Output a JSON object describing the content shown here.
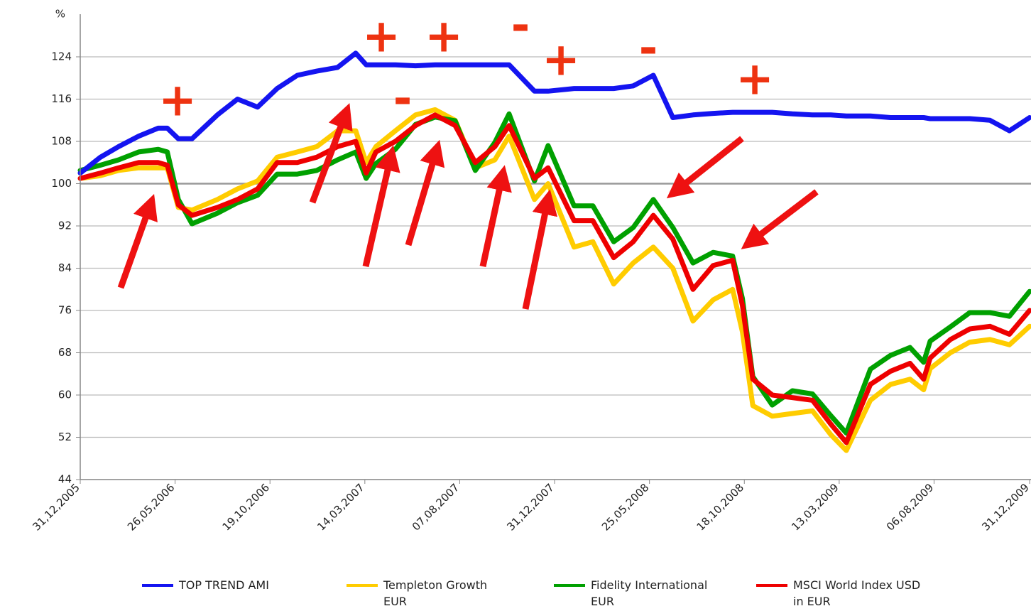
{
  "chart_data": {
    "type": "line",
    "y_label": "%",
    "x": [
      "31,12,2005",
      "31,01,2006",
      "28,02,2006",
      "31,03,2006",
      "30,04,2006",
      "14,05,2006",
      "31,05,2006",
      "21,06,2006",
      "30,07,2006",
      "30,08,2006",
      "30,09,2006",
      "30,10,2006",
      "30,11,2006",
      "30,12,2006",
      "31,01,2007",
      "28,02,2007",
      "16,03,2007",
      "31,03,2007",
      "30,04,2007",
      "31,05,2007",
      "30,06,2007",
      "31,07,2007",
      "31,08,2007",
      "30,09,2007",
      "22,10,2007",
      "30,11,2007",
      "21,12,2007",
      "30,01,2008",
      "28,02,2008",
      "31,03,2008",
      "30,04,2008",
      "31,05,2008",
      "30,06,2008",
      "31,07,2008",
      "31,08,2008",
      "30,09,2008",
      "15,10,2008",
      "31,10,2008",
      "30,11,2008",
      "31,12,2008",
      "31,01,2009",
      "28,02,2009",
      "24,03,2009",
      "30,04,2009",
      "31,05,2009",
      "30,06,2009",
      "21,07,2009",
      "31,07,2009",
      "31,08,2009",
      "30,09,2009",
      "31,10,2009",
      "30,11,2009",
      "31,12,2009"
    ],
    "series": [
      {
        "name": "TOP TREND AMI",
        "color": "#1414f0",
        "values": [
          102,
          105,
          107,
          109,
          110.5,
          110.5,
          108.5,
          108.5,
          113,
          116,
          114.5,
          118,
          120.5,
          121.3,
          122,
          124.7,
          122.5,
          122.5,
          122.5,
          122.3,
          122.5,
          122.5,
          122.5,
          122.5,
          122.5,
          117.5,
          117.5,
          118,
          118,
          118,
          118.5,
          120.5,
          112.5,
          113,
          113.3,
          113.5,
          113.5,
          113.5,
          113.5,
          113.2,
          113,
          113,
          112.8,
          112.8,
          112.5,
          112.5,
          112.5,
          112.3,
          112.3,
          112.3,
          112,
          110,
          112.5
        ]
      },
      {
        "name": "Templeton Growth EUR",
        "color": "#ffcc00",
        "values": [
          101,
          101.5,
          102.5,
          103,
          103,
          103,
          95.5,
          95,
          97,
          99,
          100.5,
          105,
          106,
          107,
          110,
          110,
          104,
          107,
          110,
          113,
          114,
          112,
          103,
          104.5,
          109,
          97,
          100,
          88,
          89,
          81,
          85,
          88,
          84,
          74,
          78,
          80,
          72,
          58,
          56,
          56.5,
          57,
          52.5,
          49.5,
          59,
          62,
          63,
          61,
          65,
          68,
          70,
          70.5,
          69.5,
          73
        ]
      },
      {
        "name": "Fidelity International EUR",
        "color": "#00a000",
        "values": [
          102.5,
          103.5,
          104.5,
          106,
          106.5,
          106,
          97,
          92.4,
          94.4,
          96.4,
          97.8,
          101.8,
          101.8,
          102.5,
          104.5,
          106,
          101,
          103.8,
          106.5,
          111.2,
          112.6,
          111.9,
          102.5,
          107.8,
          113.2,
          100.5,
          107.2,
          95.8,
          95.8,
          89,
          91.7,
          97,
          91.7,
          85,
          87,
          86.3,
          78.3,
          63.5,
          58.1,
          60.8,
          60.2,
          56.1,
          52.8,
          64.9,
          67.5,
          69,
          66.2,
          70.2,
          72.9,
          75.6,
          75.6,
          74.9,
          79.6
        ]
      },
      {
        "name": "MSCI World Index USD in EUR",
        "color": "#ee0000",
        "values": [
          101,
          102,
          103,
          104,
          104,
          103.5,
          96,
          94,
          95.5,
          97,
          99,
          104,
          104,
          105,
          107,
          108,
          102,
          106,
          108,
          111,
          113,
          111,
          104,
          107,
          111,
          101,
          103,
          93,
          93,
          86,
          89,
          94,
          89.5,
          80,
          84.5,
          85.5,
          77,
          63,
          60,
          59.5,
          59,
          54.5,
          51,
          62,
          64.5,
          66,
          63,
          67,
          70.5,
          72.5,
          73,
          71.5,
          76
        ]
      }
    ],
    "xlim": [
      "31,12,2005",
      "31,12,2009"
    ],
    "xticks": [
      "31,12,2005",
      "26,05,2006",
      "19,10,2006",
      "14,03,2007",
      "07,08,2007",
      "31,12,2007",
      "25,05,2008",
      "18,10,2008",
      "13,03,2009",
      "06,08,2009",
      "31,12,2009"
    ],
    "ylim": [
      44,
      132
    ],
    "yticks": [
      44,
      52,
      60,
      68,
      76,
      84,
      92,
      100,
      108,
      116,
      124
    ],
    "grid": true,
    "annotations": [
      "+",
      "+",
      "+",
      "+",
      "+",
      "-",
      "-",
      "-"
    ]
  }
}
